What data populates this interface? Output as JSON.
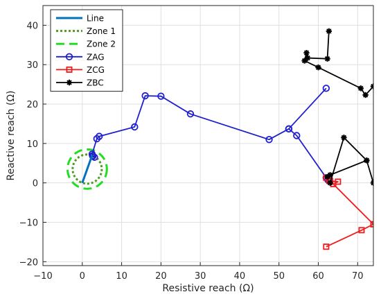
{
  "chart_data": {
    "type": "line",
    "title": "",
    "xlabel": "Resistive reach (Ω)",
    "ylabel": "Reactive reach (Ω)",
    "xlim": [
      -10,
      74
    ],
    "ylim": [
      -21,
      45
    ],
    "xticks": [
      -10,
      0,
      10,
      20,
      30,
      40,
      50,
      60,
      70
    ],
    "yticks": [
      -20,
      -10,
      0,
      10,
      20,
      30,
      40
    ],
    "grid": true,
    "legend_position": "top-left",
    "series": [
      {
        "name": "Line",
        "color": "#0072BD",
        "style": "solid",
        "marker": "none",
        "width": 3,
        "points": [
          [
            0,
            0
          ],
          [
            2.5,
            7
          ]
        ]
      },
      {
        "name": "Zone 1",
        "color": "#4D9A1F",
        "style": "dotted",
        "marker": "none",
        "width": 3,
        "shape": "circle",
        "center": [
          1.25,
          3.5
        ],
        "radius": 3.7
      },
      {
        "name": "Zone 2",
        "color": "#22DD22",
        "style": "dashed",
        "marker": "none",
        "width": 3,
        "shape": "circle",
        "center": [
          1.25,
          3.5
        ],
        "radius": 5.0
      },
      {
        "name": "ZAG",
        "color": "#1F1FD0",
        "style": "solid",
        "marker": "circle",
        "width": 1.8,
        "points": [
          [
            62,
            24
          ],
          [
            52.5,
            13.7
          ],
          [
            47.5,
            11
          ],
          [
            27.5,
            17.5
          ],
          [
            20,
            22
          ],
          [
            16,
            22.1
          ],
          [
            13.3,
            14.2
          ],
          [
            4.3,
            11.8
          ],
          [
            3.7,
            11.2
          ],
          [
            2.5,
            7.3
          ],
          [
            2.7,
            6.8
          ],
          [
            3.1,
            6.5
          ],
          [
            2.6,
            6.9
          ]
        ]
      },
      {
        "name": "ZCG",
        "color": "#EE1C1C",
        "style": "solid",
        "marker": "square",
        "width": 1.8,
        "points": [
          [
            62,
            -16.2
          ],
          [
            71,
            -12
          ],
          [
            74,
            -10.5
          ]
        ]
      },
      {
        "name": "ZBC",
        "color": "#000000",
        "style": "solid",
        "marker": "asterisk",
        "width": 1.8,
        "points": [
          [
            62.7,
            38.5
          ],
          [
            62.3,
            31.5
          ],
          [
            57.3,
            31.7
          ],
          [
            57,
            33
          ],
          [
            56.5,
            31
          ],
          [
            60,
            29.3
          ],
          [
            70.8,
            24
          ],
          [
            72,
            22.3
          ],
          [
            74,
            24.5
          ]
        ]
      }
    ],
    "extra_segments": [
      {
        "series": "ZAG",
        "points": [
          [
            52.5,
            13.7
          ],
          [
            54.5,
            12
          ],
          [
            62,
            1.3
          ],
          [
            62.4,
            0.8
          ]
        ]
      },
      {
        "series": "ZCG",
        "points": [
          [
            62,
            1.3
          ],
          [
            62.8,
            0.5
          ],
          [
            63.8,
            -0.3
          ],
          [
            65,
            0.3
          ],
          [
            63,
            0.5
          ],
          [
            74,
            -10.5
          ]
        ]
      },
      {
        "series": "ZBC",
        "points": [
          [
            62.3,
            1.5
          ],
          [
            63,
            2
          ],
          [
            72.3,
            5.7
          ],
          [
            74,
            0
          ],
          [
            72.3,
            5.7
          ],
          [
            66.5,
            11.5
          ],
          [
            63,
            0
          ]
        ]
      }
    ]
  }
}
